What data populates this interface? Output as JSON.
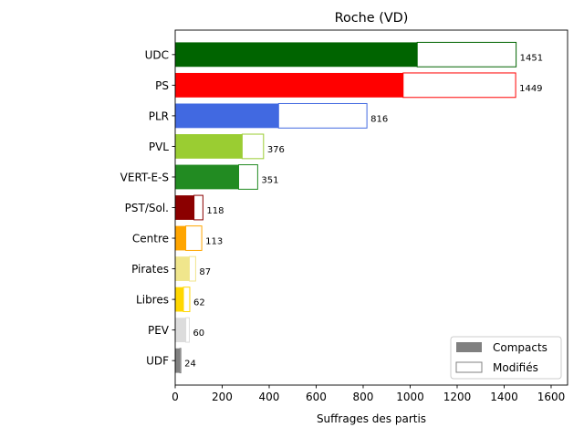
{
  "chart_data": {
    "type": "bar",
    "orientation": "horizontal",
    "stacked": true,
    "title": "Roche (VD)",
    "xlabel": "Suffrages des partis",
    "ylabel": "",
    "xlim": [
      0,
      1670
    ],
    "xticks": [
      "0",
      "200",
      "400",
      "600",
      "800",
      "1000",
      "1200",
      "1400",
      "1600"
    ],
    "grid": false,
    "legend_position": "bottom-right",
    "categories": [
      "UDC",
      "PS",
      "PLR",
      "PVL",
      "VERT-E-S",
      "PST/Sol.",
      "Centre",
      "Pirates",
      "Libres",
      "PEV",
      "UDF"
    ],
    "colors": [
      "#006400",
      "#ff0000",
      "#4169e1",
      "#9acd32",
      "#228b22",
      "#8b0000",
      "#ffa500",
      "#f0e68c",
      "#ffd700",
      "#dcdcdc",
      "#808080"
    ],
    "series": [
      {
        "name": "Compacts",
        "values": [
          1030,
          970,
          440,
          285,
          270,
          80,
          45,
          60,
          35,
          45,
          20
        ],
        "fill": "party-color"
      },
      {
        "name": "Modifiés",
        "values": [
          421,
          479,
          376,
          91,
          81,
          38,
          68,
          27,
          27,
          15,
          4
        ],
        "fill": "white-outline"
      }
    ],
    "totals": [
      1451,
      1449,
      816,
      376,
      351,
      118,
      113,
      87,
      62,
      60,
      24
    ],
    "legend": [
      {
        "label": "Compacts",
        "swatch_color": "#808080"
      },
      {
        "label": "Modifiés",
        "swatch_color": "#ffffff"
      }
    ]
  }
}
